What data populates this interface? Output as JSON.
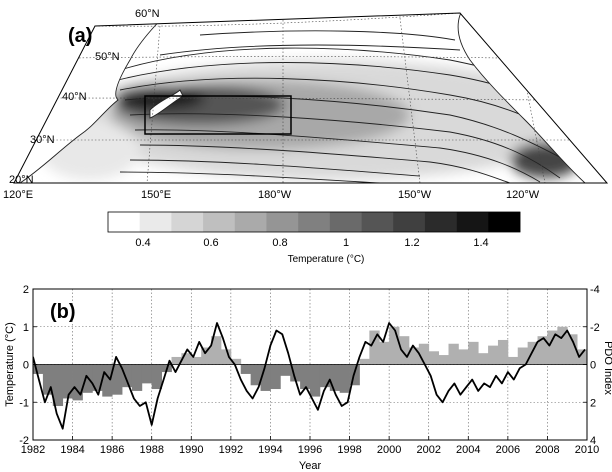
{
  "panel_a": {
    "label": "(a)",
    "lat_labels": [
      "60°N",
      "50°N",
      "40°N",
      "30°N",
      "20°N"
    ],
    "lon_labels": [
      "120°E",
      "150°E",
      "180°W",
      "150°W",
      "120°W"
    ],
    "colorbar": {
      "ticks": [
        "0.4",
        "0.6",
        "0.8",
        "1",
        "1.2",
        "1.4"
      ],
      "title": "Temperature (°C)",
      "levels": 13,
      "range": [
        0.3,
        1.6
      ]
    }
  },
  "chart_data": {
    "type": "line",
    "panel_label": "(b)",
    "xlabel": "Year",
    "ylabel": "Temperature (°C)",
    "y2label": "PDO Index",
    "xlim": [
      1982,
      2010
    ],
    "ylim": [
      -2,
      2
    ],
    "y2lim": [
      4,
      -4
    ],
    "y2_inverted": true,
    "grid": true,
    "xticks": [
      "1982",
      "1984",
      "1986",
      "1988",
      "1990",
      "1992",
      "1994",
      "1996",
      "1998",
      "2000",
      "2002",
      "2004",
      "2006",
      "2008",
      "2010"
    ],
    "yticks": [
      "2",
      "1",
      "0",
      "-1",
      "-2"
    ],
    "y2ticks": [
      "-4",
      "-2",
      "0",
      "2",
      "4"
    ],
    "series": [
      {
        "role": "temperature anomaly (line)",
        "x": [
          1982.0,
          1982.3,
          1982.6,
          1982.9,
          1983.2,
          1983.5,
          1983.8,
          1984.1,
          1984.4,
          1984.7,
          1985.0,
          1985.3,
          1985.6,
          1985.9,
          1986.2,
          1986.5,
          1986.8,
          1987.1,
          1987.4,
          1987.7,
          1988.0,
          1988.3,
          1988.6,
          1988.9,
          1989.2,
          1989.5,
          1989.8,
          1990.1,
          1990.4,
          1990.7,
          1991.0,
          1991.3,
          1991.6,
          1991.9,
          1992.2,
          1992.5,
          1992.8,
          1993.1,
          1993.4,
          1993.7,
          1994.0,
          1994.3,
          1994.6,
          1994.9,
          1995.2,
          1995.5,
          1995.8,
          1996.1,
          1996.4,
          1996.7,
          1997.0,
          1997.3,
          1997.6,
          1997.9,
          1998.2,
          1998.5,
          1998.8,
          1999.1,
          1999.4,
          1999.7,
          2000.0,
          2000.3,
          2000.6,
          2000.9,
          2001.2,
          2001.5,
          2001.8,
          2002.1,
          2002.4,
          2002.7,
          2003.0,
          2003.3,
          2003.6,
          2003.9,
          2004.2,
          2004.5,
          2004.8,
          2005.1,
          2005.4,
          2005.7,
          2006.0,
          2006.3,
          2006.6,
          2006.9,
          2007.2,
          2007.5,
          2007.8,
          2008.1,
          2008.4,
          2008.7,
          2009.0,
          2009.3,
          2009.6,
          2009.9
        ],
        "values": [
          0.2,
          -0.4,
          -1.0,
          -0.6,
          -1.3,
          -1.7,
          -0.8,
          -0.6,
          -0.8,
          -0.3,
          -0.5,
          -0.8,
          -0.2,
          -0.4,
          0.2,
          -0.1,
          -0.5,
          -0.9,
          -1.1,
          -1.0,
          -1.6,
          -0.9,
          -0.4,
          0.1,
          -0.2,
          0.1,
          0.4,
          0.2,
          0.6,
          0.3,
          0.5,
          1.1,
          0.7,
          0.2,
          0.0,
          -0.4,
          -0.7,
          -0.9,
          -0.6,
          -0.1,
          0.5,
          0.9,
          0.8,
          0.3,
          -0.3,
          -0.8,
          -0.6,
          -0.9,
          -1.2,
          -0.7,
          -0.4,
          -0.8,
          -1.1,
          -1.0,
          -0.3,
          0.2,
          0.6,
          0.5,
          0.8,
          0.6,
          1.1,
          0.9,
          0.4,
          0.2,
          0.5,
          0.3,
          0.0,
          -0.3,
          -0.8,
          -1.0,
          -0.7,
          -0.5,
          -0.8,
          -0.6,
          -0.4,
          -0.7,
          -0.5,
          -0.6,
          -0.3,
          -0.5,
          -0.2,
          -0.4,
          -0.1,
          0.0,
          0.3,
          0.6,
          0.7,
          0.5,
          0.8,
          0.7,
          0.9,
          0.6,
          0.2,
          0.4
        ],
        "color": "#000000"
      },
      {
        "role": "PDO index (bars)",
        "x": [
          1982.0,
          1982.5,
          1983.0,
          1983.5,
          1984.0,
          1984.5,
          1985.0,
          1985.5,
          1986.0,
          1986.5,
          1987.0,
          1987.5,
          1988.0,
          1988.5,
          1989.0,
          1989.5,
          1990.0,
          1990.5,
          1991.0,
          1991.5,
          1992.0,
          1992.5,
          1993.0,
          1993.5,
          1994.0,
          1994.5,
          1995.0,
          1995.5,
          1996.0,
          1996.5,
          1997.0,
          1997.5,
          1998.0,
          1998.5,
          1999.0,
          1999.5,
          2000.0,
          2000.5,
          2001.0,
          2001.5,
          2002.0,
          2002.5,
          2003.0,
          2003.5,
          2004.0,
          2004.5,
          2005.0,
          2005.5,
          2006.0,
          2006.5,
          2007.0,
          2007.5,
          2008.0,
          2008.5,
          2009.0,
          2009.5
        ],
        "values": [
          0.5,
          1.6,
          2.2,
          1.8,
          1.9,
          1.5,
          1.4,
          1.7,
          1.6,
          1.2,
          1.4,
          1.0,
          1.3,
          0.4,
          -0.4,
          -0.6,
          -0.4,
          -0.9,
          -1.5,
          -0.8,
          -0.3,
          0.5,
          1.1,
          1.4,
          1.3,
          0.6,
          0.9,
          1.3,
          1.7,
          1.2,
          1.4,
          1.5,
          1.1,
          -0.3,
          -1.8,
          -1.2,
          -2.0,
          -1.5,
          -0.9,
          -1.1,
          -0.7,
          -0.5,
          -1.1,
          -0.8,
          -1.2,
          -0.6,
          -1.0,
          -1.3,
          -0.4,
          -0.9,
          -1.2,
          -1.5,
          -1.8,
          -2.0,
          -1.6,
          -0.8
        ],
        "color_positive": "#b0b0b0",
        "color_negative": "#7f7f7f"
      }
    ]
  }
}
